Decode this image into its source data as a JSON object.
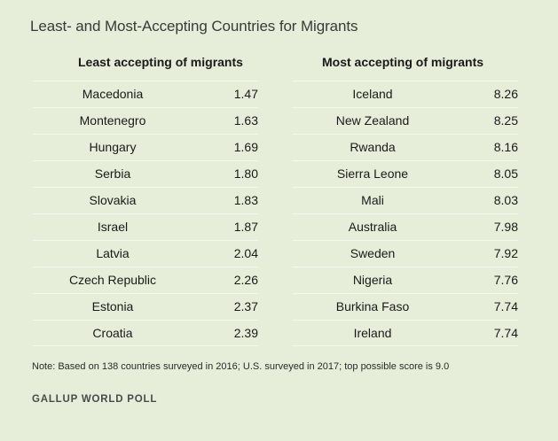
{
  "title": "Least- and Most-Accepting Countries for Migrants",
  "chart_data": {
    "type": "table",
    "title": "Least- and Most-Accepting Countries for Migrants",
    "columns": [
      {
        "header": "Least accepting of migrants",
        "rows": [
          {
            "country": "Macedonia",
            "score": "1.47"
          },
          {
            "country": "Montenegro",
            "score": "1.63"
          },
          {
            "country": "Hungary",
            "score": "1.69"
          },
          {
            "country": "Serbia",
            "score": "1.80"
          },
          {
            "country": "Slovakia",
            "score": "1.83"
          },
          {
            "country": "Israel",
            "score": "1.87"
          },
          {
            "country": "Latvia",
            "score": "2.04"
          },
          {
            "country": "Czech Republic",
            "score": "2.26"
          },
          {
            "country": "Estonia",
            "score": "2.37"
          },
          {
            "country": "Croatia",
            "score": "2.39"
          }
        ]
      },
      {
        "header": "Most accepting of migrants",
        "rows": [
          {
            "country": "Iceland",
            "score": "8.26"
          },
          {
            "country": "New Zealand",
            "score": "8.25"
          },
          {
            "country": "Rwanda",
            "score": "8.16"
          },
          {
            "country": "Sierra Leone",
            "score": "8.05"
          },
          {
            "country": "Mali",
            "score": "8.03"
          },
          {
            "country": "Australia",
            "score": "7.98"
          },
          {
            "country": "Sweden",
            "score": "7.92"
          },
          {
            "country": "Nigeria",
            "score": "7.76"
          },
          {
            "country": "Burkina Faso",
            "score": "7.74"
          },
          {
            "country": "Ireland",
            "score": "7.74"
          }
        ]
      }
    ]
  },
  "note": "Note: Based on 138 countries surveyed in 2016; U.S. surveyed in 2017; top possible score is 9.0",
  "source": "GALLUP WORLD POLL",
  "colors": {
    "background": "#e6edd9",
    "row_divider": "#f4f7ee",
    "text": "#1a1a1a"
  }
}
